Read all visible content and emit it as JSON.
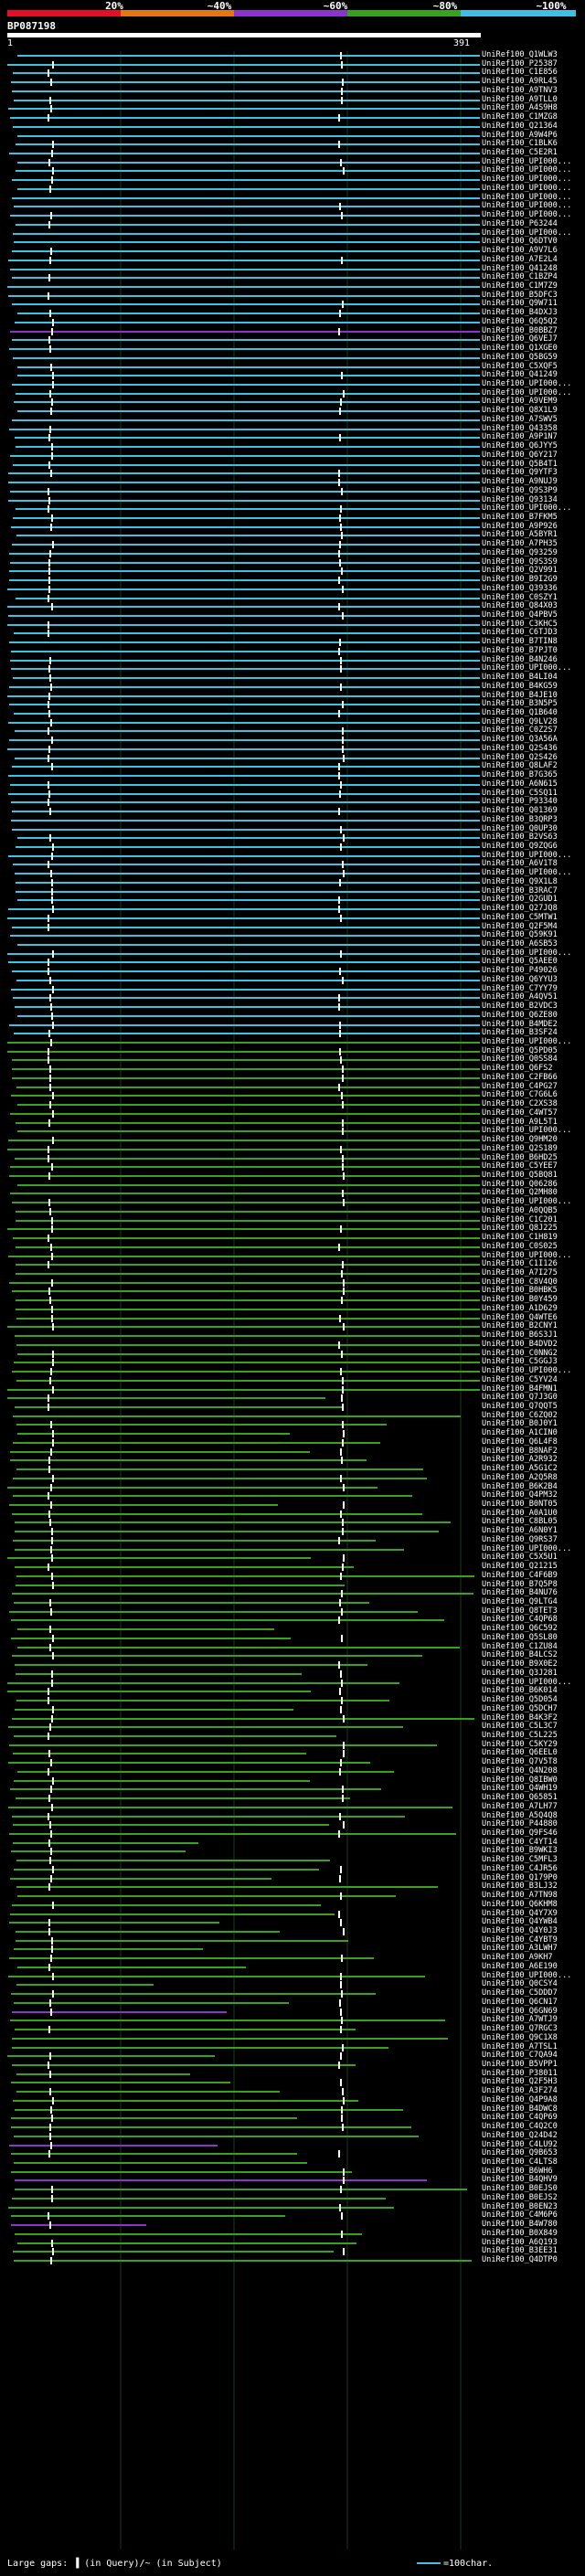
{
  "scale": {
    "labels": [
      "20%",
      "~40%",
      "~60%",
      "~80%",
      "~100%"
    ],
    "colors": [
      "#e0102a",
      "#e07a10",
      "#8a34c8",
      "#3aa020",
      "#3ec0e0"
    ]
  },
  "query": {
    "id": "BP087198",
    "start": "1",
    "end": "391"
  },
  "hits": [
    "UniRef100_Q1WLW3",
    "UniRef100_P25387",
    "UniRef100_C1E856",
    "UniRef100_A9RL45",
    "UniRef100_A9TNV3",
    "UniRef100_A9TLL0",
    "UniRef100_A4S9H8",
    "UniRef100_C1MZG8",
    "UniRef100_Q21364",
    "UniRef100_A9W4P6",
    "UniRef100_C1BLK6",
    "UniRef100_C5E2R1",
    "UniRef100_UPI000...",
    "UniRef100_UPI000...",
    "UniRef100_UPI000...",
    "UniRef100_UPI000...",
    "UniRef100_UPI000...",
    "UniRef100_UPI000...",
    "UniRef100_UPI000...",
    "UniRef100_P63244",
    "UniRef100_UPI000...",
    "UniRef100_Q6DTV0",
    "UniRef100_A9V7L6",
    "UniRef100_A7E2L4",
    "UniRef100_Q41248",
    "UniRef100_C1BZP4",
    "UniRef100_C1M7Z9",
    "UniRef100_B5DFC3",
    "UniRef100_Q9W711",
    "UniRef100_B4DXJ3",
    "UniRef100_Q6Q5Q2",
    "UniRef100_B0BBZ7",
    "UniRef100_Q6VEJ7",
    "UniRef100_Q1XGE0",
    "UniRef100_Q5BG59",
    "UniRef100_C5XQF5",
    "UniRef100_Q41249",
    "UniRef100_UPI000...",
    "UniRef100_UPI000...",
    "UniRef100_A9VEM9",
    "UniRef100_Q8X1L9",
    "UniRef100_A7SWV5",
    "UniRef100_Q43358",
    "UniRef100_A9P1N7",
    "UniRef100_Q6JYY5",
    "UniRef100_Q6Y217",
    "UniRef100_Q5B4T1",
    "UniRef100_Q9YTF3",
    "UniRef100_A9NUJ9",
    "UniRef100_Q9S3P9",
    "UniRef100_Q93134",
    "UniRef100_UPI000...",
    "UniRef100_B7FKM5",
    "UniRef100_A9P926",
    "UniRef100_A5BYR1",
    "UniRef100_A7PH35",
    "UniRef100_Q93259",
    "UniRef100_Q9S3S9",
    "UniRef100_Q2V991",
    "UniRef100_B9I2G9",
    "UniRef100_Q39336",
    "UniRef100_C0SZY1",
    "UniRef100_Q84X03",
    "UniRef100_Q4PBV5",
    "UniRef100_C3KHC5",
    "UniRef100_C6TJD3",
    "UniRef100_B7TIN8",
    "UniRef100_B7PJT0",
    "UniRef100_B4N246",
    "UniRef100_UPI000...",
    "UniRef100_B4LI04",
    "UniRef100_B4KG59",
    "UniRef100_B4JE10",
    "UniRef100_B3N5P5",
    "UniRef100_Q1B640",
    "UniRef100_Q9LV28",
    "UniRef100_C0Z2S7",
    "UniRef100_Q3A56A",
    "UniRef100_Q2S436",
    "UniRef100_Q2S426",
    "UniRef100_Q8LAF2",
    "UniRef100_B7G365",
    "UniRef100_A6N615",
    "UniRef100_C5SQ11",
    "UniRef100_P93340",
    "UniRef100_Q01369",
    "UniRef100_B3QRP3",
    "UniRef100_Q0UP30",
    "UniRef100_B2VS63",
    "UniRef100_Q9ZQG6",
    "UniRef100_UPI000...",
    "UniRef100_A6V1T8",
    "UniRef100_UPI000...",
    "UniRef100_Q9X1L8",
    "UniRef100_B3RAC7",
    "UniRef100_Q2GUD1",
    "UniRef100_Q27JQ8",
    "UniRef100_C5MTW1",
    "UniRef100_Q2F5M4",
    "UniRef100_Q59K91",
    "UniRef100_A6SB53",
    "UniRef100_UPI000...",
    "UniRef100_Q5AEE0",
    "UniRef100_P49026",
    "UniRef100_Q6YYU3",
    "UniRef100_C7YY79",
    "UniRef100_A4QV51",
    "UniRef100_B2VDC3",
    "UniRef100_Q6ZE80",
    "UniRef100_B4MDE2",
    "UniRef100_B3SF24",
    "UniRef100_UPI000...",
    "UniRef100_Q5PD05",
    "UniRef100_Q0SS84",
    "UniRef100_Q6FS2",
    "UniRef100_C2FB66",
    "UniRef100_C4PG27",
    "UniRef100_C7G6L6",
    "UniRef100_C2XS38",
    "UniRef100_C4WT57",
    "UniRef100_A9L5T1",
    "UniRef100_UPI000...",
    "UniRef100_Q9HM20",
    "UniRef100_Q2S189",
    "UniRef100_B6HD25",
    "UniRef100_C5YEE7",
    "UniRef100_Q5BQ81",
    "UniRef100_Q06286",
    "UniRef100_Q2MH80",
    "UniRef100_UPI000...",
    "UniRef100_A0QQB5",
    "UniRef100_C1C201",
    "UniRef100_Q8J225",
    "UniRef100_C1H819",
    "UniRef100_C0S025",
    "UniRef100_UPI000...",
    "UniRef100_C1I126",
    "UniRef100_A7I275",
    "UniRef100_C8V4Q0",
    "UniRef100_B0HBK5",
    "UniRef100_B0Y459",
    "UniRef100_A1D629",
    "UniRef100_Q4WTE6",
    "UniRef100_B2CNY1",
    "UniRef100_B6S3J1",
    "UniRef100_B4DVD2",
    "UniRef100_C0NNG2",
    "UniRef100_C5GGJ3",
    "UniRef100_UPI000...",
    "UniRef100_C5YV24",
    "UniRef100_B4FMN1",
    "UniRef100_Q7J3G0",
    "UniRef100_Q7QQT5",
    "UniRef100_C6ZQ02",
    "UniRef100_B0J0Y1",
    "UniRef100_A1CIN0",
    "UniRef100_Q6L4F8",
    "UniRef100_B8NAF2",
    "UniRef100_A2R932",
    "UniRef100_A5G1C2",
    "UniRef100_A2Q5R8",
    "UniRef100_B6K2B4",
    "UniRef100_Q4PM32",
    "UniRef100_B0NT05",
    "UniRef100_A0A1U0",
    "UniRef100_C8BL05",
    "UniRef100_A6N0Y1",
    "UniRef100_Q9RS37",
    "UniRef100_UPI000...",
    "UniRef100_C5X5U1",
    "UniRef100_Q21215",
    "UniRef100_C4F6B9",
    "UniRef100_B7Q5P8",
    "UniRef100_B4NU76",
    "UniRef100_Q9LTG4",
    "UniRef100_Q8TET3",
    "UniRef100_C4QP68",
    "UniRef100_Q6C592",
    "UniRef100_Q5SL80",
    "UniRef100_C1ZU84",
    "UniRef100_B4LCS2",
    "UniRef100_B9X0E2",
    "UniRef100_Q3J281",
    "UniRef100_UPI000...",
    "UniRef100_B6K014",
    "UniRef100_Q5D054",
    "UniRef100_Q5DCH7",
    "UniRef100_B4K3F2",
    "UniRef100_C5L3C7",
    "UniRef100_C5L225",
    "UniRef100_C5KY29",
    "UniRef100_Q6EEL0",
    "UniRef100_Q7V5T8",
    "UniRef100_Q4N208",
    "UniRef100_Q8IBW0",
    "UniRef100_Q4WH19",
    "UniRef100_Q65851",
    "UniRef100_A7LH77",
    "UniRef100_A5Q4Q8",
    "UniRef100_P44880",
    "UniRef100_Q9FS46",
    "UniRef100_C4YT14",
    "UniRef100_B9WKI3",
    "UniRef100_C5MFL3",
    "UniRef100_C4JR56",
    "UniRef100_Q179P0",
    "UniRef100_B3LJ32",
    "UniRef100_A7TN98",
    "UniRef100_Q6KHM8",
    "UniRef100_Q4Y7X9",
    "UniRef100_Q4YWB4",
    "UniRef100_Q4Y0J3",
    "UniRef100_C4YBT9",
    "UniRef100_A3LWH7",
    "UniRef100_A9KH7",
    "UniRef100_A6E190",
    "UniRef100_UPI000...",
    "UniRef100_Q0CSY4",
    "UniRef100_C5DDD7",
    "UniRef100_Q6CN17",
    "UniRef100_Q6GN69",
    "UniRef100_A7WTJ9",
    "UniRef100_Q7RGC3",
    "UniRef100_Q9C1X8",
    "UniRef100_A7TSL1",
    "UniRef100_C7QA94",
    "UniRef100_B5VPP1",
    "UniRef100_P38011",
    "UniRef100_Q2F5H3",
    "UniRef100_A3F274",
    "UniRef100_Q4P9A8",
    "UniRef100_B4DWC8",
    "UniRef100_C4QP69",
    "UniRef100_C4Q2C0",
    "UniRef100_Q24D42",
    "UniRef100_C4LU92",
    "UniRef100_Q9B653",
    "UniRef100_C4LTS8",
    "UniRef100_B6WH6",
    "UniRef100_B4QHV9",
    "UniRef100_B0EJS0",
    "UniRef100_B0EJS2",
    "UniRef100_B0EN23",
    "UniRef100_C4M6P6",
    "UniRef100_B4W780",
    "UniRef100_B0X849",
    "UniRef100_A6Q193",
    "UniRef100_B3EE31",
    "UniRef100_Q4DTP0"
  ],
  "footer": {
    "legend_left": "Large gaps: ▐ (in Query)/~ (in Subject)",
    "legend_right": "=100char."
  }
}
